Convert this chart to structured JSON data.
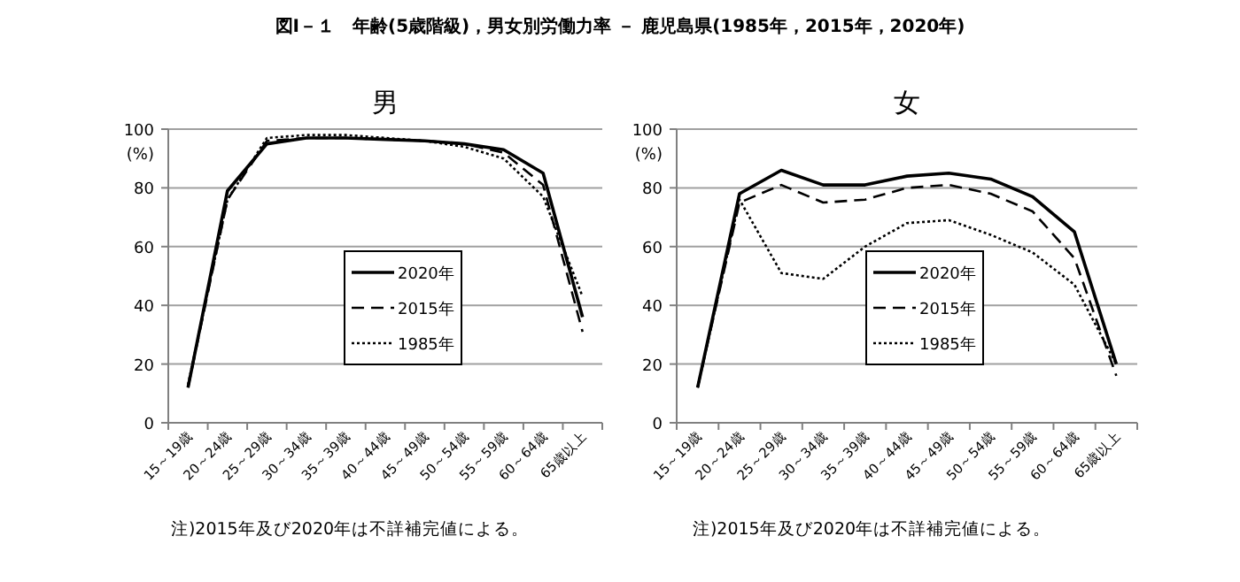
{
  "chart_data": [
    {
      "type": "line",
      "title": "男",
      "ylabel": "(%)",
      "annotations": [
        "図Ⅰ－１　年齢(5歳階級)，男女別労働力率 － 鹿児島県(1985年，2015年，2020年)",
        "注)2015年及び2020年は不詳補完値による。"
      ],
      "categories": [
        "15～19歳",
        "20～24歳",
        "25～29歳",
        "30～34歳",
        "35～39歳",
        "40～44歳",
        "45～49歳",
        "50～54歳",
        "55～59歳",
        "60～64歳",
        "65歳以上"
      ],
      "ylim": [
        0,
        100
      ],
      "yticks": [
        0,
        20,
        40,
        60,
        80,
        100
      ],
      "grid": "y",
      "legend": "center",
      "marker": "none",
      "series": [
        {
          "name": "2020年",
          "color": "#000000",
          "line_style": "solid",
          "values": [
            12,
            79,
            95,
            97,
            97,
            96.5,
            96,
            95,
            93,
            85,
            36
          ]
        },
        {
          "name": "2015年",
          "color": "#000000",
          "line_style": "dashed",
          "values": [
            12,
            76,
            96,
            97,
            97,
            96.5,
            96,
            95,
            92,
            81,
            31
          ]
        },
        {
          "name": "1985年",
          "color": "#000000",
          "line_style": "dotted",
          "values": [
            13,
            76,
            97,
            98,
            98,
            97,
            96,
            94,
            90,
            77,
            43
          ]
        }
      ]
    },
    {
      "type": "line",
      "title": "女",
      "ylabel": "(%)",
      "annotations": [
        "注)2015年及び2020年は不詳補完値による。"
      ],
      "categories": [
        "15～19歳",
        "20～24歳",
        "25～29歳",
        "30～34歳",
        "35～39歳",
        "40～44歳",
        "45～49歳",
        "50～54歳",
        "55～59歳",
        "60～64歳",
        "65歳以上"
      ],
      "ylim": [
        0,
        100
      ],
      "yticks": [
        0,
        20,
        40,
        60,
        80,
        100
      ],
      "grid": "y",
      "legend": "center",
      "marker": "none",
      "series": [
        {
          "name": "2020年",
          "color": "#000000",
          "line_style": "solid",
          "values": [
            12,
            78,
            86,
            81,
            81,
            84,
            85,
            83,
            77,
            65,
            20
          ]
        },
        {
          "name": "2015年",
          "color": "#000000",
          "line_style": "dashed",
          "values": [
            12,
            75,
            81,
            75,
            76,
            80,
            81,
            78,
            72,
            56,
            16
          ]
        },
        {
          "name": "1985年",
          "color": "#000000",
          "line_style": "dotted",
          "values": [
            12,
            76,
            51,
            49,
            60,
            68,
            69,
            64,
            58,
            47,
            20
          ]
        }
      ]
    }
  ]
}
